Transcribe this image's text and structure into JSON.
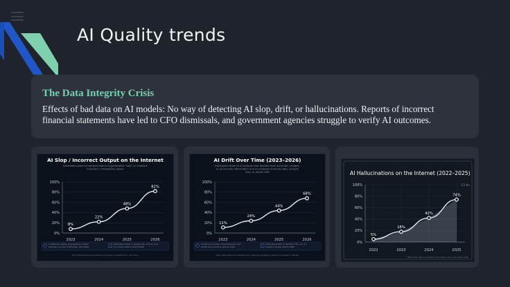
{
  "slide": {
    "title": "AI Quality trends"
  },
  "crisis": {
    "title": "The Data Integrity Crisis",
    "body": "Effects of bad data on AI models: No way of detecting AI slop, drift, or hallucinations. Reports of incorrect financial statements have led to CFO dismissals, and government agencies struggle to verify AI outcomes."
  },
  "colors": {
    "accent_teal": "#6fd3b0",
    "accent_blue": "#1f57c9",
    "background": "#1f232c",
    "card": "#2d323c"
  },
  "chart_data": [
    {
      "type": "line",
      "title": "AI Slop / Incorrect Output on the Internet",
      "subtitle": "Estimated share of content that is AI-generated \"slop\" or contains incorrect / misleading output",
      "x": [
        "2023",
        "2024",
        "2025",
        "2026"
      ],
      "yticks": [
        "0%",
        "20%",
        "40%",
        "60%",
        "80%",
        "100%"
      ],
      "ylim": [
        0,
        100
      ],
      "series": [
        {
          "values": [
            8,
            22,
            48,
            82
          ]
        }
      ],
      "data_labels": [
        "8%",
        "22%",
        "48%",
        "82%"
      ],
      "notes": [
        "Unreflected quality AI generated content, factually incorrect information, fabricated data, and misleading AI outputs",
        "Estimated based on Google Ads, Scholar, and AI content studies (2023–2026)"
      ],
      "footer": "Trend: Estimated are indicative and draw on studies from, and more."
    },
    {
      "type": "line",
      "title": "AI Drift Over Time (2023–2026)",
      "subtitle": "Estimated share of AI outputs that deviate from accurate, reliable, or up-to-date information due to outdated training data, context loss, or model drift",
      "x": [
        "2023",
        "2024",
        "2025",
        "2026"
      ],
      "yticks": [
        "0%",
        "20%",
        "40%",
        "60%",
        "80%",
        "100%"
      ],
      "ylim": [
        0,
        100
      ],
      "series": [
        {
          "values": [
            11,
            24,
            44,
            68
          ]
        }
      ],
      "data_labels": [
        "11%",
        "24%",
        "44%",
        "68%"
      ],
      "notes": [
        "AI drift occurs when model precision and results fall over time, less accurate, consistent, or relevant over time.",
        "Estimated based on Stanford, MIT, and AI research studies (2023–2026)"
      ],
      "footer": "Trend: Estimated are indicative and drawn by academic, model, and research reports."
    },
    {
      "type": "area",
      "title": "AI Hallucinations on the Internet (2022–2025)",
      "x": [
        "2022",
        "2023",
        "2024",
        "2025"
      ],
      "yticks": [
        "0%",
        "20%",
        "40%",
        "60%",
        "80%",
        "100%"
      ],
      "ylim": [
        0,
        100
      ],
      "series": [
        {
          "values": [
            5,
            18,
            42,
            74
          ]
        }
      ],
      "data_labels": [
        "5%",
        "18%",
        "42%",
        "74%"
      ],
      "corner_tag": "13 kn",
      "footer": "*Estimated data is indicative of industry trend from 2022–2025"
    }
  ]
}
